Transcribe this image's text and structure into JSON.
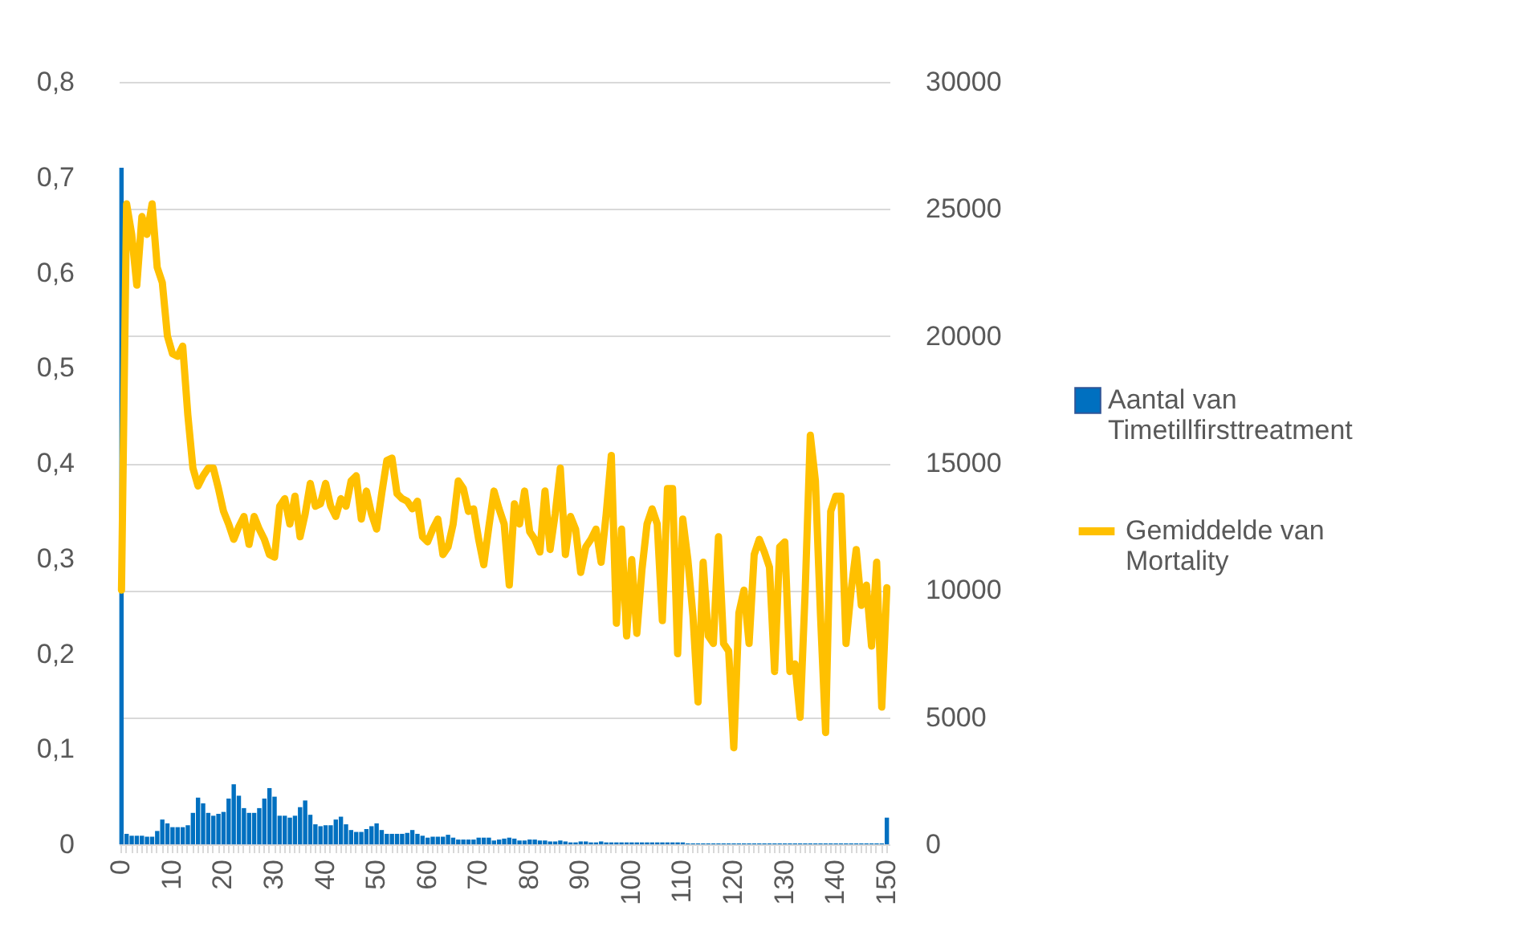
{
  "chart_data": {
    "type": "bar",
    "categories": [
      "0",
      null,
      null,
      null,
      null,
      null,
      null,
      null,
      null,
      null,
      "10",
      null,
      null,
      null,
      null,
      null,
      null,
      null,
      null,
      null,
      "20",
      null,
      null,
      null,
      null,
      null,
      null,
      null,
      null,
      null,
      "30",
      null,
      null,
      null,
      null,
      null,
      null,
      null,
      null,
      null,
      "40",
      null,
      null,
      null,
      null,
      null,
      null,
      null,
      null,
      null,
      "50",
      null,
      null,
      null,
      null,
      null,
      null,
      null,
      null,
      null,
      "60",
      null,
      null,
      null,
      null,
      null,
      null,
      null,
      null,
      null,
      "70",
      null,
      null,
      null,
      null,
      null,
      null,
      null,
      null,
      null,
      "80",
      null,
      null,
      null,
      null,
      null,
      null,
      null,
      null,
      null,
      "90",
      null,
      null,
      null,
      null,
      null,
      null,
      null,
      null,
      null,
      "100",
      null,
      null,
      null,
      null,
      null,
      null,
      null,
      null,
      null,
      "110",
      null,
      null,
      null,
      null,
      null,
      null,
      null,
      null,
      null,
      "120",
      null,
      null,
      null,
      null,
      null,
      null,
      null,
      null,
      null,
      "130",
      null,
      null,
      null,
      null,
      null,
      null,
      null,
      null,
      null,
      "140",
      null,
      null,
      null,
      null,
      null,
      null,
      null,
      null,
      null,
      "150"
    ],
    "series": [
      {
        "name": "Aantal van Timetillfirsttreatment",
        "color": "#0070c0",
        "values": [
          0.71,
          0.011,
          0.009,
          0.009,
          0.009,
          0.008,
          0.008,
          0.014,
          0.026,
          0.022,
          0.018,
          0.018,
          0.018,
          0.02,
          0.033,
          0.049,
          0.043,
          0.033,
          0.03,
          0.032,
          0.034,
          0.048,
          0.063,
          0.051,
          0.038,
          0.033,
          0.033,
          0.038,
          0.048,
          0.059,
          0.05,
          0.03,
          0.03,
          0.028,
          0.03,
          0.039,
          0.046,
          0.031,
          0.021,
          0.019,
          0.02,
          0.02,
          0.026,
          0.029,
          0.021,
          0.015,
          0.013,
          0.013,
          0.016,
          0.019,
          0.022,
          0.015,
          0.011,
          0.011,
          0.011,
          0.011,
          0.012,
          0.015,
          0.011,
          0.009,
          0.007,
          0.008,
          0.008,
          0.008,
          0.01,
          0.007,
          0.005,
          0.005,
          0.005,
          0.005,
          0.007,
          0.007,
          0.007,
          0.004,
          0.005,
          0.006,
          0.007,
          0.006,
          0.004,
          0.004,
          0.005,
          0.005,
          0.004,
          0.004,
          0.003,
          0.003,
          0.004,
          0.003,
          0.002,
          0.002,
          0.003,
          0.003,
          0.002,
          0.002,
          0.003,
          0.002,
          0.002,
          0.002,
          0.002,
          0.002,
          0.002,
          0.002,
          0.002,
          0.002,
          0.002,
          0.002,
          0.002,
          0.002,
          0.002,
          0.002,
          0.002,
          0.001,
          0.001,
          0.001,
          0.001,
          0.001,
          0.001,
          0.001,
          0.001,
          0.001,
          0.001,
          0.001,
          0.001,
          0.001,
          0.001,
          0.001,
          0.001,
          0.001,
          0.001,
          0.001,
          0.001,
          0.001,
          0.001,
          0.001,
          0.001,
          0.001,
          0.001,
          0.001,
          0.001,
          0.001,
          0.001,
          0.001,
          0.001,
          0.001,
          0.001,
          0.001,
          0.001,
          0.001,
          0.001,
          0.001,
          0.028
        ]
      },
      {
        "name": "Gemiddelde van Mortality",
        "type": "line",
        "axis": "y2",
        "color": "#ffc000",
        "values": [
          10000,
          25200,
          24000,
          22000,
          24700,
          24000,
          25200,
          22700,
          22100,
          20000,
          19300,
          19200,
          19600,
          16900,
          14800,
          14100,
          14500,
          14800,
          14800,
          14000,
          13100,
          12600,
          12000,
          12500,
          12900,
          11800,
          12900,
          12400,
          12000,
          11400,
          11300,
          13300,
          13600,
          12600,
          13700,
          12100,
          13000,
          14200,
          13300,
          13400,
          14200,
          13300,
          12900,
          13600,
          13300,
          14300,
          14500,
          12800,
          13900,
          13000,
          12400,
          13800,
          15100,
          15200,
          13800,
          13600,
          13500,
          13200,
          13500,
          12100,
          11900,
          12400,
          12800,
          11400,
          11700,
          12600,
          14300,
          14000,
          13100,
          13200,
          12000,
          11000,
          12500,
          13900,
          13200,
          12600,
          10200,
          13400,
          12600,
          13900,
          12300,
          12000,
          11500,
          13900,
          11600,
          13000,
          14800,
          11400,
          12900,
          12400,
          10700,
          11700,
          12000,
          12400,
          11100,
          13000,
          15300,
          8700,
          12400,
          8200,
          11200,
          8300,
          10800,
          12600,
          13200,
          12600,
          8800,
          14000,
          14000,
          7500,
          12800,
          11200,
          9000,
          5600,
          11100,
          8200,
          7900,
          12100,
          7900,
          7600,
          3800,
          9100,
          10000,
          7900,
          11400,
          12000,
          11500,
          10900,
          6800,
          11700,
          11900,
          6800,
          7100,
          5000,
          10000,
          16100,
          14300,
          9000,
          4400,
          13100,
          13700,
          13700,
          7900,
          10000,
          11600,
          9400,
          10200,
          7800,
          11100,
          5400,
          10100
        ]
      }
    ],
    "ylim": [
      0,
      0.8
    ],
    "yticks": [
      {
        "value": 0,
        "label": "0"
      },
      {
        "value": 0.1,
        "label": "0,1"
      },
      {
        "value": 0.2,
        "label": "0,2"
      },
      {
        "value": 0.3,
        "label": "0,3"
      },
      {
        "value": 0.4,
        "label": "0,4"
      },
      {
        "value": 0.5,
        "label": "0,5"
      },
      {
        "value": 0.6,
        "label": "0,6"
      },
      {
        "value": 0.7,
        "label": "0,7"
      },
      {
        "value": 0.8,
        "label": "0,8"
      }
    ],
    "y2lim": [
      0,
      30000
    ],
    "y2ticks": [
      0,
      5000,
      10000,
      15000,
      20000,
      25000,
      30000
    ],
    "grid": true,
    "legend": "right",
    "line_style": "solid",
    "marker": "none"
  }
}
